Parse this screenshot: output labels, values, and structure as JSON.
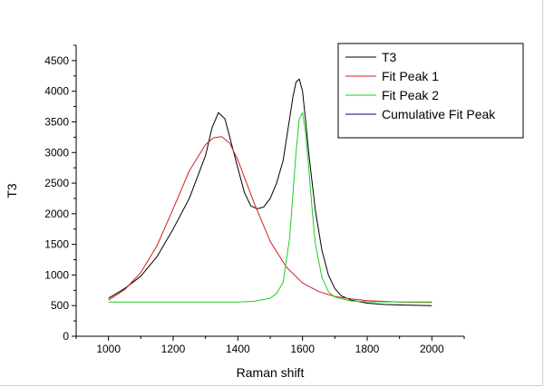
{
  "chart_data": {
    "type": "line",
    "title": "",
    "xlabel": "Raman shift",
    "ylabel": "T3",
    "xlim": [
      900,
      2100
    ],
    "ylim": [
      0,
      4750
    ],
    "x_ticks": [
      1000,
      1200,
      1400,
      1600,
      1800,
      2000
    ],
    "y_ticks": [
      0,
      500,
      1000,
      1500,
      2000,
      2500,
      3000,
      3500,
      4000,
      4500
    ],
    "grid": false,
    "legend_position": "top-right",
    "series": [
      {
        "name": "T3",
        "color": "#000000",
        "x": [
          1000,
          1050,
          1100,
          1150,
          1200,
          1250,
          1300,
          1320,
          1340,
          1360,
          1380,
          1400,
          1420,
          1440,
          1460,
          1480,
          1500,
          1520,
          1540,
          1560,
          1570,
          1580,
          1590,
          1600,
          1610,
          1620,
          1640,
          1660,
          1680,
          1700,
          1720,
          1750,
          1800,
          1850,
          1900,
          1950,
          2000
        ],
        "y": [
          620,
          780,
          980,
          1300,
          1750,
          2250,
          2950,
          3400,
          3650,
          3550,
          3150,
          2750,
          2350,
          2130,
          2080,
          2110,
          2250,
          2500,
          2870,
          3550,
          3900,
          4150,
          4200,
          4000,
          3500,
          2950,
          2050,
          1400,
          1000,
          780,
          660,
          590,
          540,
          520,
          510,
          505,
          500
        ]
      },
      {
        "name": "Fit Peak 1",
        "color": "#d02020",
        "x": [
          1000,
          1050,
          1100,
          1150,
          1200,
          1250,
          1300,
          1325,
          1350,
          1375,
          1400,
          1450,
          1500,
          1550,
          1600,
          1650,
          1700,
          1750,
          1800,
          1850,
          1900,
          1950,
          2000
        ],
        "y": [
          590,
          760,
          1040,
          1480,
          2080,
          2700,
          3130,
          3240,
          3260,
          3150,
          2880,
          2180,
          1550,
          1130,
          870,
          730,
          650,
          610,
          580,
          570,
          560,
          555,
          550
        ]
      },
      {
        "name": "Fit Peak 2",
        "color": "#22cc22",
        "x": [
          1000,
          1200,
          1400,
          1450,
          1500,
          1520,
          1540,
          1560,
          1570,
          1580,
          1590,
          1600,
          1610,
          1620,
          1630,
          1640,
          1660,
          1680,
          1700,
          1750,
          1800,
          2000
        ],
        "y": [
          560,
          560,
          560,
          570,
          620,
          700,
          880,
          1600,
          2300,
          3000,
          3550,
          3650,
          3300,
          2700,
          2050,
          1500,
          960,
          730,
          640,
          575,
          562,
          560
        ]
      },
      {
        "name": "Cumulative Fit Peak",
        "color": "#000080",
        "x": [],
        "y": []
      }
    ]
  }
}
